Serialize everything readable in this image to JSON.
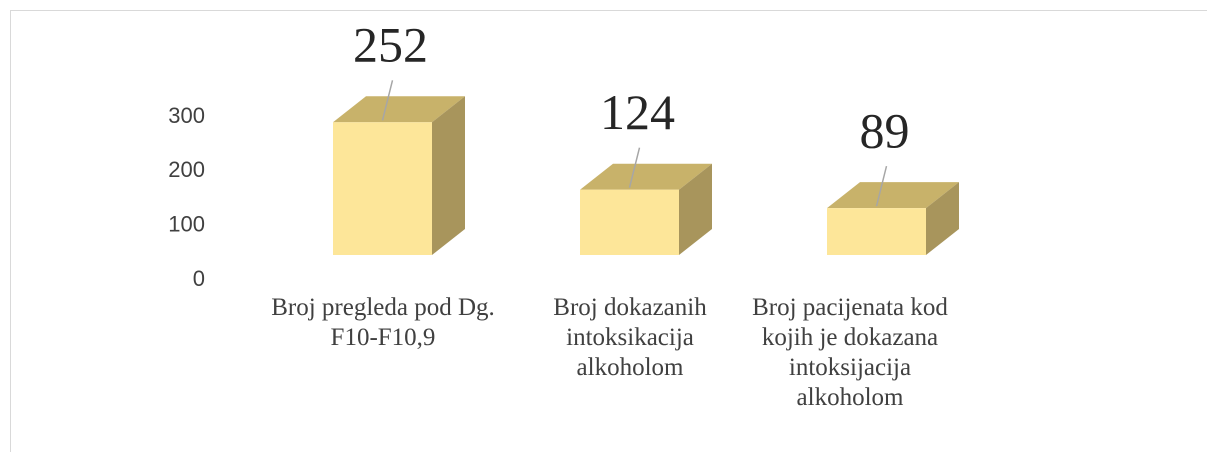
{
  "chart_data": {
    "type": "bar3d",
    "categories": [
      "Broj pregleda pod Dg. F10-F10,9",
      "Broj dokazanih intoksikacija alkoholom",
      "Broj pacijenata kod kojih je dokazana intoksijacija alkoholom"
    ],
    "values": [
      252,
      124,
      89
    ],
    "color": "#fde699",
    "ylim": [
      0,
      300
    ],
    "yticks": [
      0,
      100,
      200,
      300
    ],
    "grid": false
  }
}
